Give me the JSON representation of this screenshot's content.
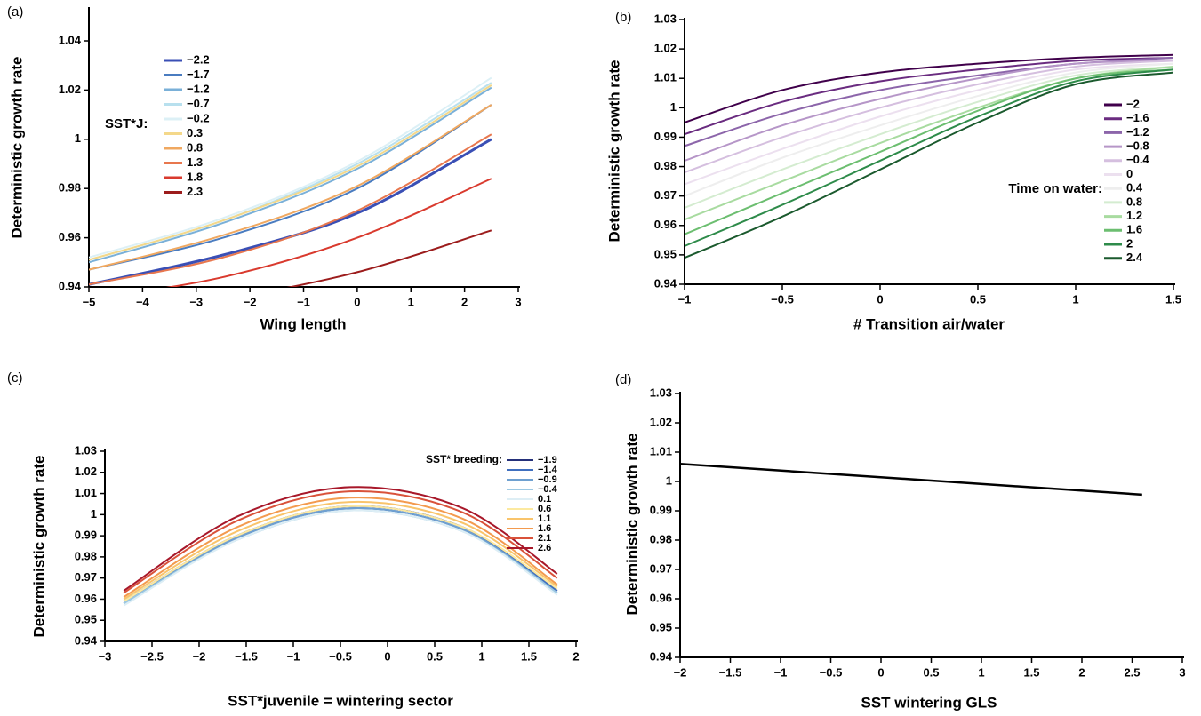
{
  "chart_data": [
    {
      "type": "line",
      "panel_label": "(a)",
      "x_label": "Wing length",
      "y_label": "Deterministic growth rate",
      "legend_title": "SST*J:",
      "x": [
        -5,
        -2.5,
        0,
        2.5
      ],
      "xlim": [
        -5,
        3
      ],
      "ylim": [
        0.94,
        1.053
      ],
      "xticks": [
        {
          "value": -5,
          "label": "−5"
        },
        {
          "value": -4,
          "label": "−4"
        },
        {
          "value": -3,
          "label": "−3"
        },
        {
          "value": -2,
          "label": "−2"
        },
        {
          "value": -1,
          "label": "−1"
        },
        0,
        1,
        2,
        3
      ],
      "yticks": [
        0.94,
        0.96,
        0.98,
        1,
        1.02,
        1.04
      ],
      "series": [
        {
          "name": "−2.2",
          "color": "#3a4fb5",
          "values": [
            0.941,
            0.953,
            0.97,
            1.0
          ]
        },
        {
          "name": "−1.7",
          "color": "#4a7cc0",
          "values": [
            0.947,
            0.96,
            0.98,
            1.014
          ]
        },
        {
          "name": "−1.2",
          "color": "#7ab0d8",
          "values": [
            0.95,
            0.966,
            0.988,
            1.021
          ]
        },
        {
          "name": "−0.7",
          "color": "#b8e0ee",
          "values": [
            0.951,
            0.967,
            0.99,
            1.023
          ]
        },
        {
          "name": "−0.2",
          "color": "#dcf0f6",
          "values": [
            0.952,
            0.968,
            0.991,
            1.025
          ]
        },
        {
          "name": "0.3",
          "color": "#f4d88a",
          "values": [
            0.951,
            0.967,
            0.989,
            1.022
          ]
        },
        {
          "name": "0.8",
          "color": "#f0a860",
          "values": [
            0.947,
            0.961,
            0.981,
            1.014
          ]
        },
        {
          "name": "1.3",
          "color": "#e8774e",
          "values": [
            0.941,
            0.952,
            0.971,
            1.002
          ]
        },
        {
          "name": "1.8",
          "color": "#d93a2e",
          "values": [
            0.935,
            0.944,
            0.96,
            0.984
          ]
        },
        {
          "name": "2.3",
          "color": "#9c1c1c",
          "values": [
            0.928,
            0.935,
            0.946,
            0.963
          ]
        }
      ]
    },
    {
      "type": "line",
      "panel_label": "(b)",
      "x_label": "# Transition air/water",
      "y_label": "Deterministic growth rate",
      "legend_title": "Time on water:",
      "x": [
        -1,
        -0.5,
        0,
        0.5,
        1,
        1.5
      ],
      "xlim": [
        -1,
        1.5
      ],
      "ylim": [
        0.94,
        1.03
      ],
      "xticks": [
        {
          "value": -1,
          "label": "−1"
        },
        {
          "value": -0.5,
          "label": "−0.5"
        },
        0,
        0.5,
        1,
        1.5
      ],
      "yticks": [
        0.94,
        0.95,
        0.96,
        0.97,
        0.98,
        0.99,
        1,
        1.01,
        1.02,
        1.03
      ],
      "series": [
        {
          "name": "−2",
          "color": "#40004b",
          "values": [
            0.995,
            1.006,
            1.012,
            1.015,
            1.017,
            1.018
          ]
        },
        {
          "name": "−1.6",
          "color": "#6a2c80",
          "values": [
            0.991,
            1.002,
            1.009,
            1.013,
            1.016,
            1.017
          ]
        },
        {
          "name": "−1.2",
          "color": "#8c65aa",
          "values": [
            0.987,
            0.998,
            1.006,
            1.011,
            1.015,
            1.017
          ]
        },
        {
          "name": "−0.8",
          "color": "#b696c8",
          "values": [
            0.982,
            0.994,
            1.003,
            1.01,
            1.015,
            1.016
          ]
        },
        {
          "name": "−0.4",
          "color": "#d5bfdf",
          "values": [
            0.978,
            0.99,
            1.0,
            1.008,
            1.014,
            1.016
          ]
        },
        {
          "name": "0",
          "color": "#ece0ef",
          "values": [
            0.974,
            0.986,
            0.997,
            1.006,
            1.013,
            1.015
          ]
        },
        {
          "name": "0.4",
          "color": "#eeeeee",
          "values": [
            0.97,
            0.983,
            0.994,
            1.004,
            1.012,
            1.015
          ]
        },
        {
          "name": "0.8",
          "color": "#d4ecd0",
          "values": [
            0.966,
            0.979,
            0.991,
            1.002,
            1.011,
            1.014
          ]
        },
        {
          "name": "1.2",
          "color": "#a8dba0",
          "values": [
            0.962,
            0.975,
            0.988,
            1.0,
            1.01,
            1.014
          ]
        },
        {
          "name": "1.6",
          "color": "#6cbe70",
          "values": [
            0.957,
            0.971,
            0.985,
            0.999,
            1.01,
            1.013
          ]
        },
        {
          "name": "2",
          "color": "#2e8b4a",
          "values": [
            0.953,
            0.967,
            0.982,
            0.997,
            1.009,
            1.013
          ]
        },
        {
          "name": "2.4",
          "color": "#1b5a2e",
          "values": [
            0.949,
            0.963,
            0.979,
            0.995,
            1.008,
            1.012
          ]
        }
      ]
    },
    {
      "type": "line",
      "panel_label": "(c)",
      "x_label": "SST*juvenile = wintering sector",
      "y_label": "Deterministic growth rate",
      "legend_title": "SST* breeding:",
      "x": [
        -2.8,
        -1.6,
        -0.4,
        0.8,
        1.8
      ],
      "xlim": [
        -3,
        2
      ],
      "ylim": [
        0.94,
        1.03
      ],
      "xticks": [
        {
          "value": -3,
          "label": "−3"
        },
        {
          "value": -2.5,
          "label": "−2.5"
        },
        {
          "value": -2,
          "label": "−2"
        },
        {
          "value": -1.5,
          "label": "−1.5"
        },
        {
          "value": -1,
          "label": "−1"
        },
        {
          "value": -0.5,
          "label": "−0.5"
        },
        0,
        0.5,
        1,
        1.5,
        2
      ],
      "yticks": [
        0.94,
        0.95,
        0.96,
        0.97,
        0.98,
        0.99,
        1,
        1.01,
        1.02,
        1.03
      ],
      "series": [
        {
          "name": "−1.9",
          "color": "#24307a",
          "values": [
            0.959,
            0.99,
            1.004,
            0.994,
            0.964
          ]
        },
        {
          "name": "−1.4",
          "color": "#3f6fbf",
          "values": [
            0.958,
            0.989,
            1.003,
            0.993,
            0.964
          ]
        },
        {
          "name": "−0.9",
          "color": "#6fa0d0",
          "values": [
            0.958,
            0.989,
            1.003,
            0.993,
            0.963
          ]
        },
        {
          "name": "−0.4",
          "color": "#9cc8e3",
          "values": [
            0.958,
            0.988,
            1.002,
            0.992,
            0.963
          ]
        },
        {
          "name": "0.1",
          "color": "#ddeef5",
          "values": [
            0.957,
            0.988,
            1.002,
            0.992,
            0.962
          ]
        },
        {
          "name": "0.6",
          "color": "#fce9a0",
          "values": [
            0.959,
            0.99,
            1.004,
            0.994,
            0.965
          ]
        },
        {
          "name": "1.1",
          "color": "#f9c46b",
          "values": [
            0.96,
            0.992,
            1.006,
            0.996,
            0.966
          ]
        },
        {
          "name": "1.6",
          "color": "#f39a4e",
          "values": [
            0.961,
            0.994,
            1.008,
            0.998,
            0.967
          ]
        },
        {
          "name": "2.1",
          "color": "#d9523a",
          "values": [
            0.963,
            0.997,
            1.011,
            1.001,
            0.97
          ]
        },
        {
          "name": "2.6",
          "color": "#a8182a",
          "values": [
            0.964,
            0.999,
            1.013,
            1.003,
            0.972
          ]
        }
      ]
    },
    {
      "type": "line",
      "panel_label": "(d)",
      "x_label": "SST wintering GLS",
      "y_label": "Deterministic growth rate",
      "x": [
        -2,
        2.6
      ],
      "xlim": [
        -2,
        3
      ],
      "ylim": [
        0.94,
        1.03
      ],
      "xticks": [
        {
          "value": -2,
          "label": "−2"
        },
        {
          "value": -1.5,
          "label": "−1.5"
        },
        {
          "value": -1,
          "label": "−1"
        },
        {
          "value": -0.5,
          "label": "−0.5"
        },
        0,
        0.5,
        1,
        1.5,
        2,
        2.5,
        3
      ],
      "yticks": [
        0.94,
        0.95,
        0.96,
        0.97,
        0.98,
        0.99,
        1,
        1.01,
        1.02,
        1.03
      ],
      "series": [
        {
          "color": "#000000",
          "values": [
            1.006,
            0.9955
          ]
        }
      ]
    }
  ]
}
